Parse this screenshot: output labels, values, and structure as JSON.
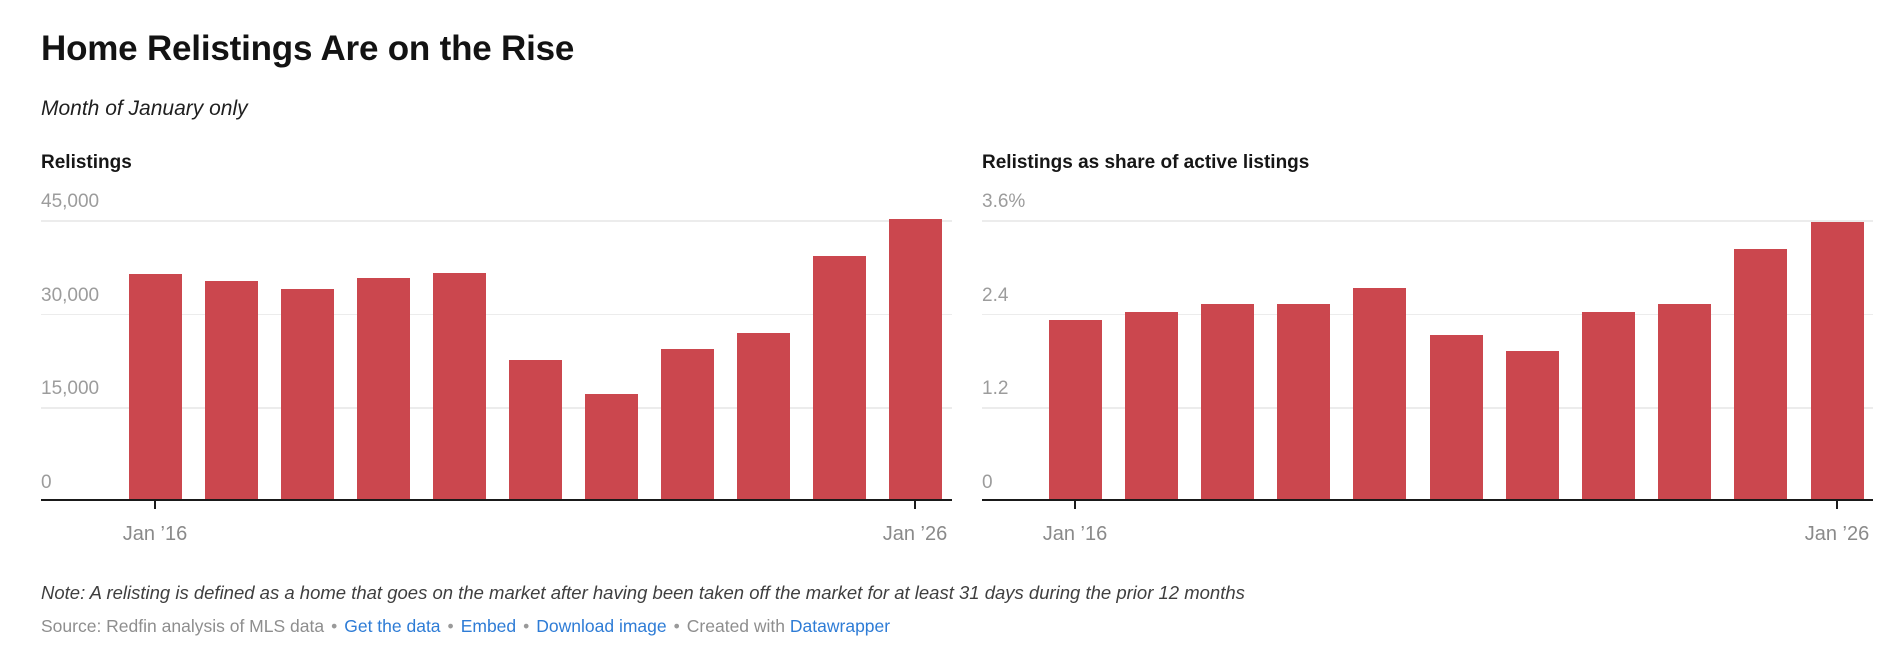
{
  "header": {
    "title": "Home Relistings Are on the Rise",
    "subtitle": "Month of January only"
  },
  "chart_data": [
    {
      "type": "bar",
      "title": "Relistings",
      "categories": [
        "Jan 2016",
        "Jan 2017",
        "Jan 2018",
        "Jan 2019",
        "Jan 2020",
        "Jan 2021",
        "Jan 2022",
        "Jan 2023",
        "Jan 2024",
        "Jan 2025",
        "Jan 2026"
      ],
      "values": [
        36000,
        34900,
        33600,
        35400,
        36200,
        22200,
        16800,
        24100,
        26600,
        38900,
        44800
      ],
      "xlabel": "",
      "ylabel": "",
      "ylim": [
        0,
        45000
      ],
      "grid": "on",
      "legend": "none",
      "yticks": [
        {
          "label": "45,000",
          "value": 45000
        },
        {
          "label": "30,000",
          "value": 30000
        },
        {
          "label": "15,000",
          "value": 15000
        },
        {
          "label": "0",
          "value": 0
        }
      ],
      "x_axis_labels": [
        {
          "index": 0,
          "label": "Jan ’16"
        },
        {
          "index": 10,
          "label": "Jan ’26"
        }
      ]
    },
    {
      "type": "bar",
      "title": "Relistings as share of active listings",
      "categories": [
        "Jan 2016",
        "Jan 2017",
        "Jan 2018",
        "Jan 2019",
        "Jan 2020",
        "Jan 2021",
        "Jan 2022",
        "Jan 2023",
        "Jan 2024",
        "Jan 2025",
        "Jan 2026"
      ],
      "values": [
        2.3,
        2.4,
        2.5,
        2.5,
        2.7,
        2.1,
        1.9,
        2.4,
        2.5,
        3.2,
        3.55
      ],
      "xlabel": "",
      "ylabel": "",
      "ylim": [
        0,
        3.6
      ],
      "grid": "on",
      "legend": "none",
      "yticks": [
        {
          "label": "3.6%",
          "value": 3.6
        },
        {
          "label": "2.4",
          "value": 2.4
        },
        {
          "label": "1.2",
          "value": 1.2
        },
        {
          "label": "0",
          "value": 0
        }
      ],
      "x_axis_labels": [
        {
          "index": 0,
          "label": "Jan ’16"
        },
        {
          "index": 10,
          "label": "Jan ’26"
        }
      ]
    }
  ],
  "style": {
    "bar_color": "#cb474e",
    "link_color": "#2e7cd6",
    "gridline_color": "#ececec",
    "axis_color": "#1a1a1a"
  },
  "footer": {
    "note": "Note: A relisting is defined as a home that goes on the market after having been taken off the market for at least 31 days during the prior 12 months",
    "source_label": "Source: Redfin analysis of MLS data",
    "links": [
      "Get the data",
      "Embed",
      "Download image"
    ],
    "created_with": "Created with",
    "creator_link": "Datawrapper",
    "separator": "•"
  }
}
